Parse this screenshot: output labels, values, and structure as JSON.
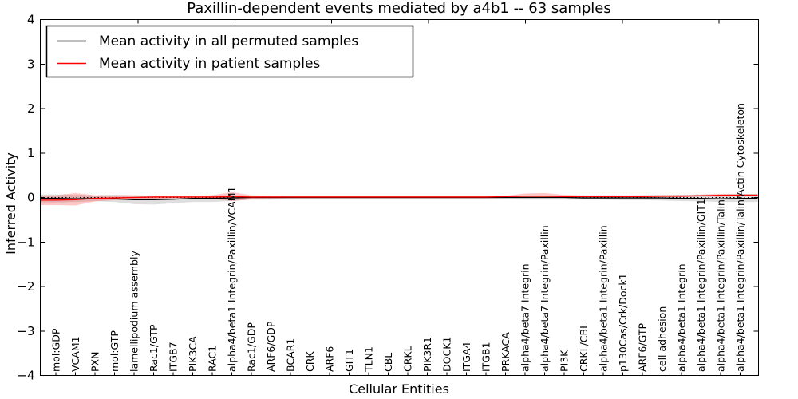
{
  "figure": {
    "title": "Paxillin-dependent events mediated by a4b1 -- 63 samples",
    "legend": [
      {
        "label": "Mean activity in all permuted samples",
        "color": "#000000"
      },
      {
        "label": "Mean activity in patient samples",
        "color": "#ff0000"
      }
    ]
  },
  "chart_data": {
    "type": "line",
    "title": "Paxillin-dependent events mediated by a4b1 -- 63 samples",
    "xlabel": "Cellular Entities",
    "ylabel": "Inferred Activity",
    "ylim": [
      -4,
      4
    ],
    "yticks": [
      -4,
      -3,
      -2,
      -1,
      0,
      1,
      2,
      3,
      4
    ],
    "grid": false,
    "legend_position": "upper left",
    "zero_reference_line": 0,
    "colors": {
      "permuted_line": "#000000",
      "permuted_band": "#000000",
      "patient_line": "#ff0000",
      "patient_band": "#ff0000"
    },
    "categories": [
      "mol:GDP",
      "VCAM1",
      "PXN",
      "mol:GTP",
      "lamellipodium assembly",
      "Rac1/GTP",
      "ITGB7",
      "PIK3CA",
      "RAC1",
      "alpha4/beta1 Integrin/Paxillin/VCAM1",
      "Rac1/GDP",
      "ARF6/GDP",
      "BCAR1",
      "CRK",
      "ARF6",
      "GIT1",
      "TLN1",
      "CBL",
      "CRKL",
      "PIK3R1",
      "DOCK1",
      "ITGA4",
      "ITGB1",
      "PRKACA",
      "alpha4/beta7 Integrin",
      "alpha4/beta7 Integrin/Paxillin",
      "PI3K",
      "CRKL/CBL",
      "alpha4/beta1 Integrin/Paxillin",
      "p130Cas/Crk/Dock1",
      "ARF6/GTP",
      "cell adhesion",
      "alpha4/beta1 Integrin",
      "alpha4/beta1 Integrin/Paxillin/GIT1",
      "alpha4/beta1 Integrin/Paxillin/Talin",
      "alpha4/beta1 Integrin/Paxillin/Talin/Actin Cytoskeleton"
    ],
    "series": [
      {
        "name": "Mean activity in all permuted samples",
        "color": "#000000",
        "band_opacity": 0.13,
        "values": [
          -0.02,
          -0.03,
          -0.02,
          -0.03,
          -0.05,
          -0.05,
          -0.04,
          -0.02,
          -0.02,
          -0.01,
          0,
          0,
          0,
          0,
          0,
          0,
          0,
          0,
          0,
          0,
          0,
          0,
          0,
          0,
          0,
          0,
          0,
          -0.01,
          -0.01,
          -0.01,
          -0.01,
          -0.01,
          -0.02,
          -0.02,
          -0.03,
          -0.02
        ],
        "band_upper": [
          0.07,
          0.06,
          0.05,
          0.06,
          0.05,
          0.04,
          0.04,
          0.04,
          0.05,
          0.05,
          0.04,
          0.03,
          0.03,
          0.03,
          0.03,
          0.03,
          0.03,
          0.03,
          0.03,
          0.03,
          0.03,
          0.03,
          0.03,
          0.03,
          0.04,
          0.04,
          0.04,
          0.04,
          0.04,
          0.04,
          0.05,
          0.05,
          0.06,
          0.06,
          0.07,
          0.08
        ],
        "band_lower": [
          -0.11,
          -0.1,
          -0.08,
          -0.1,
          -0.15,
          -0.16,
          -0.13,
          -0.1,
          -0.1,
          -0.08,
          -0.05,
          -0.05,
          -0.04,
          -0.04,
          -0.04,
          -0.04,
          -0.04,
          -0.04,
          -0.04,
          -0.04,
          -0.04,
          -0.04,
          -0.04,
          -0.04,
          -0.05,
          -0.05,
          -0.05,
          -0.05,
          -0.05,
          -0.06,
          -0.06,
          -0.07,
          -0.08,
          -0.09,
          -0.1,
          -0.1
        ]
      },
      {
        "name": "Mean activity in patient samples",
        "color": "#ff0000",
        "band_opacity": 0.22,
        "values": [
          -0.06,
          -0.05,
          -0.02,
          -0.01,
          0,
          0.01,
          0.01,
          0.01,
          0.01,
          0.02,
          0.01,
          0.01,
          0.01,
          0.01,
          0.01,
          0.01,
          0.01,
          0.01,
          0.01,
          0.01,
          0.01,
          0.01,
          0.01,
          0.02,
          0.03,
          0.03,
          0.02,
          0.02,
          0.02,
          0.02,
          0.02,
          0.03,
          0.03,
          0.04,
          0.05,
          0.05
        ],
        "band_upper": [
          0.05,
          0.1,
          0.05,
          0.05,
          0.05,
          0.04,
          0.04,
          0.04,
          0.05,
          0.12,
          0.05,
          0.04,
          0.03,
          0.03,
          0.03,
          0.03,
          0.03,
          0.03,
          0.03,
          0.03,
          0.03,
          0.03,
          0.03,
          0.04,
          0.09,
          0.1,
          0.06,
          0.05,
          0.05,
          0.05,
          0.05,
          0.06,
          0.06,
          0.07,
          0.08,
          0.08
        ],
        "band_lower": [
          -0.17,
          -0.18,
          -0.09,
          -0.06,
          -0.04,
          -0.03,
          -0.02,
          -0.02,
          -0.03,
          -0.08,
          -0.04,
          -0.03,
          -0.02,
          -0.02,
          -0.02,
          -0.02,
          -0.02,
          -0.02,
          -0.02,
          -0.02,
          -0.02,
          -0.02,
          -0.02,
          -0.01,
          -0.01,
          -0.01,
          -0.01,
          -0.01,
          0,
          0,
          0,
          0.01,
          0.01,
          0.02,
          0.02,
          0.03
        ]
      }
    ]
  }
}
